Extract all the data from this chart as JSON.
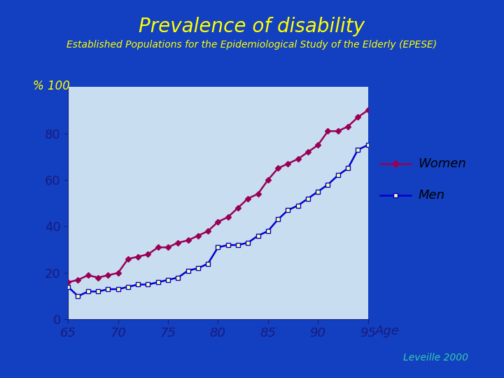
{
  "title": "Prevalence of disability",
  "subtitle": "Established Populations for the Epidemiological Study of the Elderly (EPESE)",
  "title_color": "#FFFF00",
  "subtitle_color": "#FFFF00",
  "xlabel": "Age",
  "pct_label": "% 100",
  "background_outer": "#1240c0",
  "background_plot": "#c8ddf0",
  "legend_bg": "#c8ddf0",
  "xlabel_color": "#1a1a80",
  "tick_color": "#1a1a80",
  "annotation": "Leveille 2000",
  "annotation_color": "#33ccaa",
  "women_color": "#990055",
  "men_color": "#0000cc",
  "women_data": [
    16,
    17,
    19,
    18,
    19,
    20,
    26,
    27,
    28,
    31,
    31,
    33,
    34,
    36,
    38,
    42,
    44,
    48,
    52,
    54,
    60,
    65,
    67,
    69,
    72,
    75,
    81,
    81,
    83,
    87,
    90
  ],
  "men_data": [
    14,
    10,
    12,
    12,
    13,
    13,
    14,
    15,
    15,
    16,
    17,
    18,
    21,
    22,
    24,
    31,
    32,
    32,
    33,
    36,
    38,
    43,
    47,
    49,
    52,
    55,
    58,
    62,
    65,
    73,
    75
  ],
  "ages": [
    65,
    66,
    67,
    68,
    69,
    70,
    71,
    72,
    73,
    74,
    75,
    76,
    77,
    78,
    79,
    80,
    81,
    82,
    83,
    84,
    85,
    86,
    87,
    88,
    89,
    90,
    91,
    92,
    93,
    94,
    95
  ],
  "ylim": [
    0,
    100
  ],
  "xlim": [
    65,
    95
  ],
  "yticks": [
    0,
    20,
    40,
    60,
    80
  ],
  "xticks": [
    65,
    70,
    75,
    80,
    85,
    90,
    95
  ],
  "title_fontsize": 20,
  "subtitle_fontsize": 10,
  "tick_fontsize": 13,
  "legend_fontsize": 13
}
